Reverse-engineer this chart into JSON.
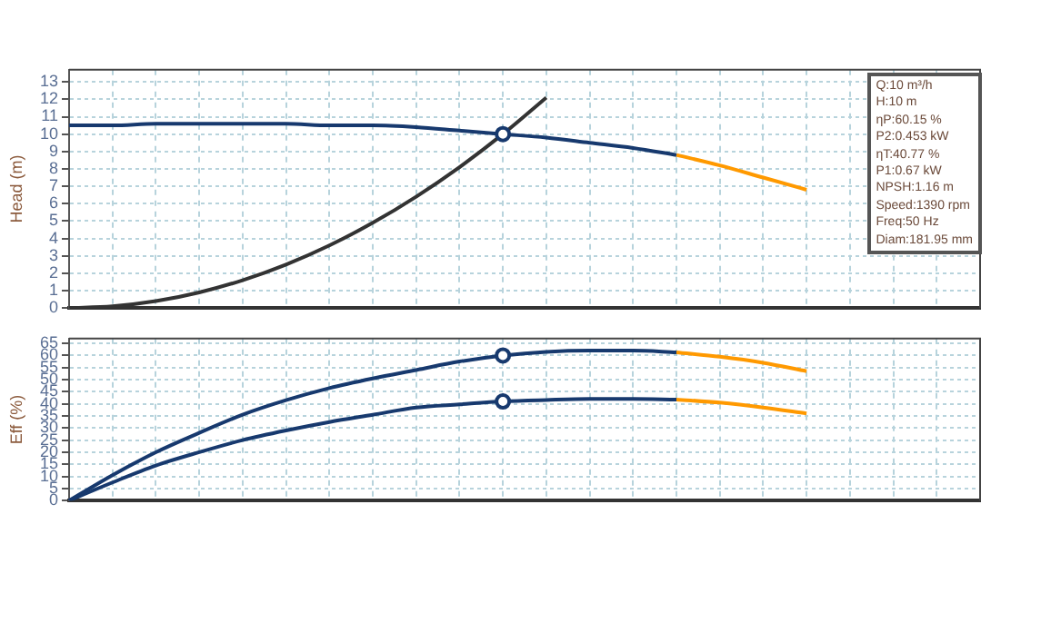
{
  "chart_data": [
    {
      "type": "line",
      "ylabel": "Head (m)",
      "categories": [
        null,
        null,
        null,
        null,
        null,
        null,
        null,
        null,
        null,
        null,
        null,
        null,
        null,
        null,
        null,
        null,
        null,
        null,
        null,
        null,
        null,
        null
      ],
      "ylim": [
        0,
        13.7
      ],
      "yticks": [
        0,
        1,
        2,
        3,
        4,
        5,
        6,
        7,
        8,
        9,
        10,
        11,
        12,
        13
      ],
      "grid": true,
      "legend": false,
      "tick_labels": "y",
      "annotations": [
        "Q:10 m³/h",
        "H:10 m",
        "ηP:60.15 %",
        "P2:0.453 kW",
        "ηT:40.77 %",
        "P1:0.67 kW",
        "NPSH:1.16 m",
        "Speed:1390 rpm",
        "Freq:50 Hz",
        "Diam:181.95 mm"
      ],
      "series": [
        {
          "type": "line",
          "color": "#17396e",
          "marker": "none",
          "values": [
            10.5,
            10.5,
            10.6,
            10.6,
            10.6,
            10.6,
            10.5,
            10.5,
            10.4,
            10.2,
            10.0,
            9.8,
            9.5,
            9.2,
            8.8,
            null,
            null,
            null,
            null,
            null,
            null,
            null
          ]
        },
        {
          "type": "line",
          "color": "#ff9900",
          "marker": "none",
          "values": [
            null,
            null,
            null,
            null,
            null,
            null,
            null,
            null,
            null,
            null,
            null,
            null,
            null,
            null,
            8.8,
            8.2,
            7.5,
            6.8,
            null,
            null,
            null,
            null
          ]
        },
        {
          "type": "line",
          "color": "#333333",
          "marker": "none",
          "values": [
            0,
            0.1,
            0.4,
            0.9,
            1.6,
            2.5,
            3.6,
            4.9,
            6.4,
            8.1,
            10.0,
            12.1,
            null,
            null,
            null,
            null,
            null,
            null,
            null,
            null,
            null,
            null
          ]
        },
        {
          "type": "scatter",
          "color": "#17396e",
          "marker": "circle",
          "values": [
            null,
            null,
            null,
            null,
            null,
            null,
            null,
            null,
            null,
            null,
            10.0,
            null,
            null,
            null,
            null,
            null,
            null,
            null,
            null,
            null,
            null,
            null
          ]
        }
      ]
    },
    {
      "type": "line",
      "ylabel": "Eff (%)",
      "categories": [
        null,
        null,
        null,
        null,
        null,
        null,
        null,
        null,
        null,
        null,
        null,
        null,
        null,
        null,
        null,
        null,
        null,
        null,
        null,
        null,
        null,
        null
      ],
      "ylim": [
        0,
        67
      ],
      "yticks": [
        0,
        5,
        10,
        15,
        20,
        25,
        30,
        35,
        40,
        45,
        50,
        55,
        60,
        65
      ],
      "grid": true,
      "legend": false,
      "tick_labels": "y",
      "series": [
        {
          "type": "line",
          "color": "#17396e",
          "marker": "none",
          "values": [
            0,
            10.5,
            20,
            28,
            35.5,
            41.5,
            46.5,
            50.5,
            54,
            57.5,
            60,
            61.5,
            62,
            62,
            61.3,
            null,
            null,
            null,
            null,
            null,
            null,
            null
          ]
        },
        {
          "type": "line",
          "color": "#ff9900",
          "marker": "none",
          "values": [
            null,
            null,
            null,
            null,
            null,
            null,
            null,
            null,
            null,
            null,
            null,
            null,
            null,
            null,
            61.3,
            59.5,
            57,
            53.5,
            null,
            null,
            null,
            null
          ]
        },
        {
          "type": "line",
          "color": "#17396e",
          "marker": "none",
          "values": [
            0,
            7.5,
            14.5,
            20,
            25,
            29,
            32.5,
            35.5,
            38.5,
            39.8,
            41,
            41.6,
            42,
            42,
            41.8,
            null,
            null,
            null,
            null,
            null,
            null,
            null
          ]
        },
        {
          "type": "line",
          "color": "#ff9900",
          "marker": "none",
          "values": [
            null,
            null,
            null,
            null,
            null,
            null,
            null,
            null,
            null,
            null,
            null,
            null,
            null,
            null,
            41.8,
            40.5,
            38.5,
            36,
            null,
            null,
            null,
            null
          ]
        },
        {
          "type": "scatter",
          "color": "#17396e",
          "marker": "circle",
          "values": [
            null,
            null,
            null,
            null,
            null,
            null,
            null,
            null,
            null,
            null,
            60,
            null,
            null,
            null,
            null,
            null,
            null,
            null,
            null,
            null,
            null,
            null
          ]
        },
        {
          "type": "scatter",
          "color": "#17396e",
          "marker": "circle",
          "values": [
            null,
            null,
            null,
            null,
            null,
            null,
            null,
            null,
            null,
            null,
            41,
            null,
            null,
            null,
            null,
            null,
            null,
            null,
            null,
            null,
            null,
            null
          ]
        }
      ]
    }
  ]
}
